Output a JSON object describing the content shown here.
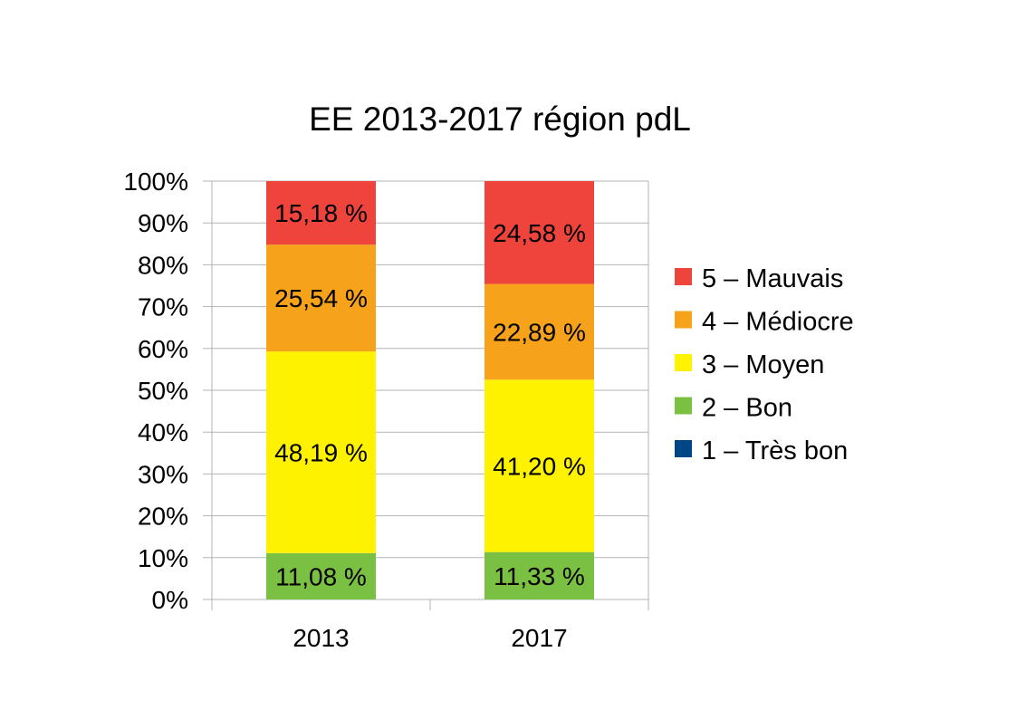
{
  "chart_data": {
    "type": "bar",
    "stacked": true,
    "percent_stacked": true,
    "title": "EE 2013-2017 région pdL",
    "categories": [
      "2013",
      "2017"
    ],
    "series": [
      {
        "name": "1 – Très bon",
        "values": [
          0,
          0
        ],
        "labels": [
          "",
          ""
        ],
        "color": "#004586"
      },
      {
        "name": "2 – Bon",
        "values": [
          11.08,
          11.33
        ],
        "labels": [
          "11,08 %",
          "11,33 %"
        ],
        "color": "#7ac043"
      },
      {
        "name": "3 – Moyen",
        "values": [
          48.19,
          41.2
        ],
        "labels": [
          "48,19 %",
          "41,20 %"
        ],
        "color": "#fff200"
      },
      {
        "name": "4 – Médiocre",
        "values": [
          25.54,
          22.89
        ],
        "labels": [
          "25,54 %",
          "22,89 %"
        ],
        "color": "#f7a21b"
      },
      {
        "name": "5 – Mauvais",
        "values": [
          15.18,
          24.58
        ],
        "labels": [
          "15,18 %",
          "24,58 %"
        ],
        "color": "#ef443c"
      }
    ],
    "ylim": [
      0,
      100
    ],
    "yticks": [
      0,
      10,
      20,
      30,
      40,
      50,
      60,
      70,
      80,
      90,
      100
    ],
    "ytick_labels": [
      "0%",
      "10%",
      "20%",
      "30%",
      "40%",
      "50%",
      "60%",
      "70%",
      "80%",
      "90%",
      "100%"
    ],
    "legend_order": [
      "5 – Mauvais",
      "4 – Médiocre",
      "3 – Moyen",
      "2 – Bon",
      "1 – Très bon"
    ],
    "legend_position": "right",
    "grid": true,
    "xlabel": "",
    "ylabel": ""
  }
}
